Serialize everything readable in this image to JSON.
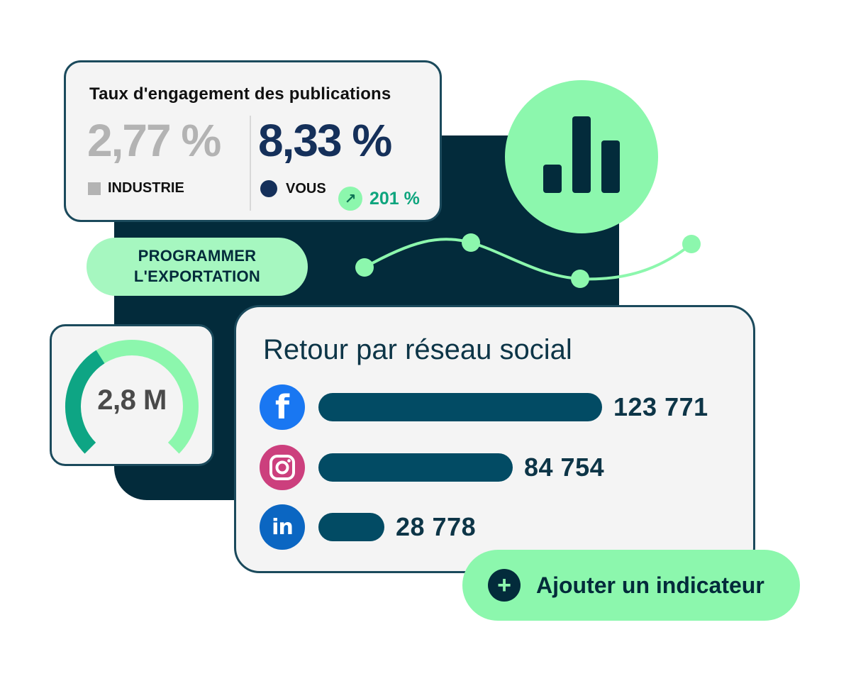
{
  "engagement": {
    "title": "Taux d'engagement des publications",
    "industry_value": "2,77 %",
    "industry_label": "INDUSTRIE",
    "your_value": "8,33 %",
    "your_label": "VOUS",
    "change": "201 %",
    "change_icon": "arrow-up-right-icon"
  },
  "export": {
    "label_line1": "PROGRAMMER",
    "label_line2": "L'EXPORTATION"
  },
  "gauge": {
    "value": "2,8 M",
    "fill_fraction": 0.62
  },
  "social": {
    "title": "Retour par réseau social",
    "networks": [
      {
        "network": "facebook",
        "icon": "facebook-icon",
        "value": "123 771",
        "count": 123771,
        "color": "#1977f2"
      },
      {
        "network": "instagram",
        "icon": "instagram-icon",
        "value": "84 754",
        "count": 84754,
        "color": "#cc3f7d"
      },
      {
        "network": "linkedin",
        "icon": "linkedin-icon",
        "value": "28 778",
        "count": 28778,
        "color": "#0b66c2"
      }
    ]
  },
  "add_metric": {
    "label": "Ajouter un indicateur",
    "icon": "plus-icon"
  },
  "colors": {
    "dark": "#032b3b",
    "accent_green": "#8cf7ad",
    "bar": "#024b64",
    "teal": "#0fa57e"
  }
}
